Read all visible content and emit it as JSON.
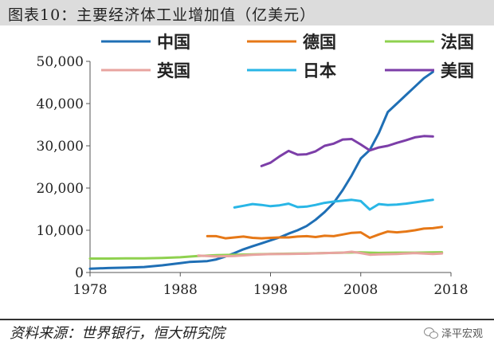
{
  "figure": {
    "title": "图表10：主要经济体工业增加值（亿美元）",
    "source": "资料来源：世界银行，恒大研究院",
    "brand": "泽平宏观"
  },
  "chart_data": {
    "type": "line",
    "title": "图表10：主要经济体工业增加值（亿美元）",
    "xlabel": "",
    "ylabel": "",
    "xlim": [
      1978,
      2018
    ],
    "ylim": [
      0,
      50000
    ],
    "xticks": [
      1978,
      1988,
      1998,
      2008,
      2018
    ],
    "yticks": [
      0,
      10000,
      20000,
      30000,
      40000,
      50000
    ],
    "ytick_labels": [
      "0",
      "10,000",
      "20,000",
      "30,000",
      "40,000",
      "50,000"
    ],
    "grid": false,
    "legend": "top",
    "series": [
      {
        "name": "中国",
        "color": "#1f6fb5",
        "points": [
          [
            1978,
            900
          ],
          [
            1980,
            1050
          ],
          [
            1982,
            1150
          ],
          [
            1984,
            1300
          ],
          [
            1986,
            1700
          ],
          [
            1988,
            2200
          ],
          [
            1989,
            2500
          ],
          [
            1991,
            2700
          ],
          [
            1992,
            3100
          ],
          [
            1993,
            3800
          ],
          [
            1994,
            4600
          ],
          [
            1995,
            5500
          ],
          [
            1996,
            6200
          ],
          [
            1997,
            6900
          ],
          [
            1998,
            7600
          ],
          [
            1999,
            8300
          ],
          [
            2000,
            9200
          ],
          [
            2001,
            10000
          ],
          [
            2002,
            11000
          ],
          [
            2003,
            12500
          ],
          [
            2004,
            14300
          ],
          [
            2005,
            16500
          ],
          [
            2006,
            19500
          ],
          [
            2007,
            23000
          ],
          [
            2008,
            27000
          ],
          [
            2009,
            29000
          ],
          [
            2010,
            33000
          ],
          [
            2011,
            38000
          ],
          [
            2012,
            40000
          ],
          [
            2013,
            42000
          ],
          [
            2014,
            44000
          ],
          [
            2015,
            46000
          ],
          [
            2016,
            47500
          ]
        ]
      },
      {
        "name": "德国",
        "color": "#e67817",
        "points": [
          [
            1991,
            8600
          ],
          [
            1992,
            8600
          ],
          [
            1993,
            8100
          ],
          [
            1994,
            8300
          ],
          [
            1995,
            8500
          ],
          [
            1996,
            8200
          ],
          [
            1997,
            8100
          ],
          [
            1998,
            8200
          ],
          [
            1999,
            8300
          ],
          [
            2000,
            8300
          ],
          [
            2001,
            8500
          ],
          [
            2002,
            8600
          ],
          [
            2003,
            8400
          ],
          [
            2004,
            8700
          ],
          [
            2005,
            8600
          ],
          [
            2006,
            9000
          ],
          [
            2007,
            9400
          ],
          [
            2008,
            9500
          ],
          [
            2009,
            8200
          ],
          [
            2010,
            9000
          ],
          [
            2011,
            9700
          ],
          [
            2012,
            9500
          ],
          [
            2013,
            9700
          ],
          [
            2014,
            10000
          ],
          [
            2015,
            10400
          ],
          [
            2016,
            10500
          ],
          [
            2017,
            10800
          ]
        ]
      },
      {
        "name": "法国",
        "color": "#8fd14f",
        "points": [
          [
            1978,
            3300
          ],
          [
            1980,
            3300
          ],
          [
            1982,
            3350
          ],
          [
            1984,
            3350
          ],
          [
            1986,
            3450
          ],
          [
            1988,
            3600
          ],
          [
            1990,
            3900
          ],
          [
            1992,
            4100
          ],
          [
            1994,
            4200
          ],
          [
            1996,
            4300
          ],
          [
            1998,
            4400
          ],
          [
            2000,
            4450
          ],
          [
            2002,
            4500
          ],
          [
            2004,
            4600
          ],
          [
            2006,
            4700
          ],
          [
            2008,
            4800
          ],
          [
            2009,
            4700
          ],
          [
            2010,
            4650
          ],
          [
            2012,
            4700
          ],
          [
            2014,
            4700
          ],
          [
            2016,
            4750
          ],
          [
            2017,
            4800
          ]
        ]
      },
      {
        "name": "英国",
        "color": "#e8a4a0",
        "points": [
          [
            1990,
            4000
          ],
          [
            1992,
            3800
          ],
          [
            1994,
            3900
          ],
          [
            1996,
            4200
          ],
          [
            1998,
            4350
          ],
          [
            2000,
            4400
          ],
          [
            2002,
            4450
          ],
          [
            2004,
            4600
          ],
          [
            2006,
            4700
          ],
          [
            2007,
            4900
          ],
          [
            2008,
            4600
          ],
          [
            2009,
            4200
          ],
          [
            2010,
            4300
          ],
          [
            2012,
            4400
          ],
          [
            2014,
            4600
          ],
          [
            2016,
            4400
          ],
          [
            2017,
            4500
          ]
        ]
      },
      {
        "name": "日本",
        "color": "#29b6e6",
        "points": [
          [
            1994,
            15400
          ],
          [
            1995,
            15800
          ],
          [
            1996,
            16200
          ],
          [
            1997,
            16000
          ],
          [
            1998,
            15700
          ],
          [
            1999,
            15900
          ],
          [
            2000,
            16300
          ],
          [
            2001,
            15500
          ],
          [
            2002,
            15600
          ],
          [
            2003,
            16000
          ],
          [
            2004,
            16500
          ],
          [
            2005,
            16800
          ],
          [
            2006,
            17000
          ],
          [
            2007,
            17200
          ],
          [
            2008,
            16900
          ],
          [
            2009,
            14900
          ],
          [
            2010,
            16200
          ],
          [
            2011,
            16000
          ],
          [
            2012,
            16100
          ],
          [
            2013,
            16300
          ],
          [
            2014,
            16600
          ],
          [
            2015,
            16900
          ],
          [
            2016,
            17200
          ]
        ]
      },
      {
        "name": "美国",
        "color": "#7c3ea8",
        "points": [
          [
            1997,
            25200
          ],
          [
            1998,
            26000
          ],
          [
            1999,
            27500
          ],
          [
            2000,
            28800
          ],
          [
            2001,
            27900
          ],
          [
            2002,
            28000
          ],
          [
            2003,
            28700
          ],
          [
            2004,
            30000
          ],
          [
            2005,
            30500
          ],
          [
            2006,
            31500
          ],
          [
            2007,
            31600
          ],
          [
            2008,
            30300
          ],
          [
            2009,
            28900
          ],
          [
            2010,
            29600
          ],
          [
            2011,
            30000
          ],
          [
            2012,
            30700
          ],
          [
            2013,
            31300
          ],
          [
            2014,
            32000
          ],
          [
            2015,
            32300
          ],
          [
            2016,
            32200
          ]
        ]
      }
    ]
  }
}
